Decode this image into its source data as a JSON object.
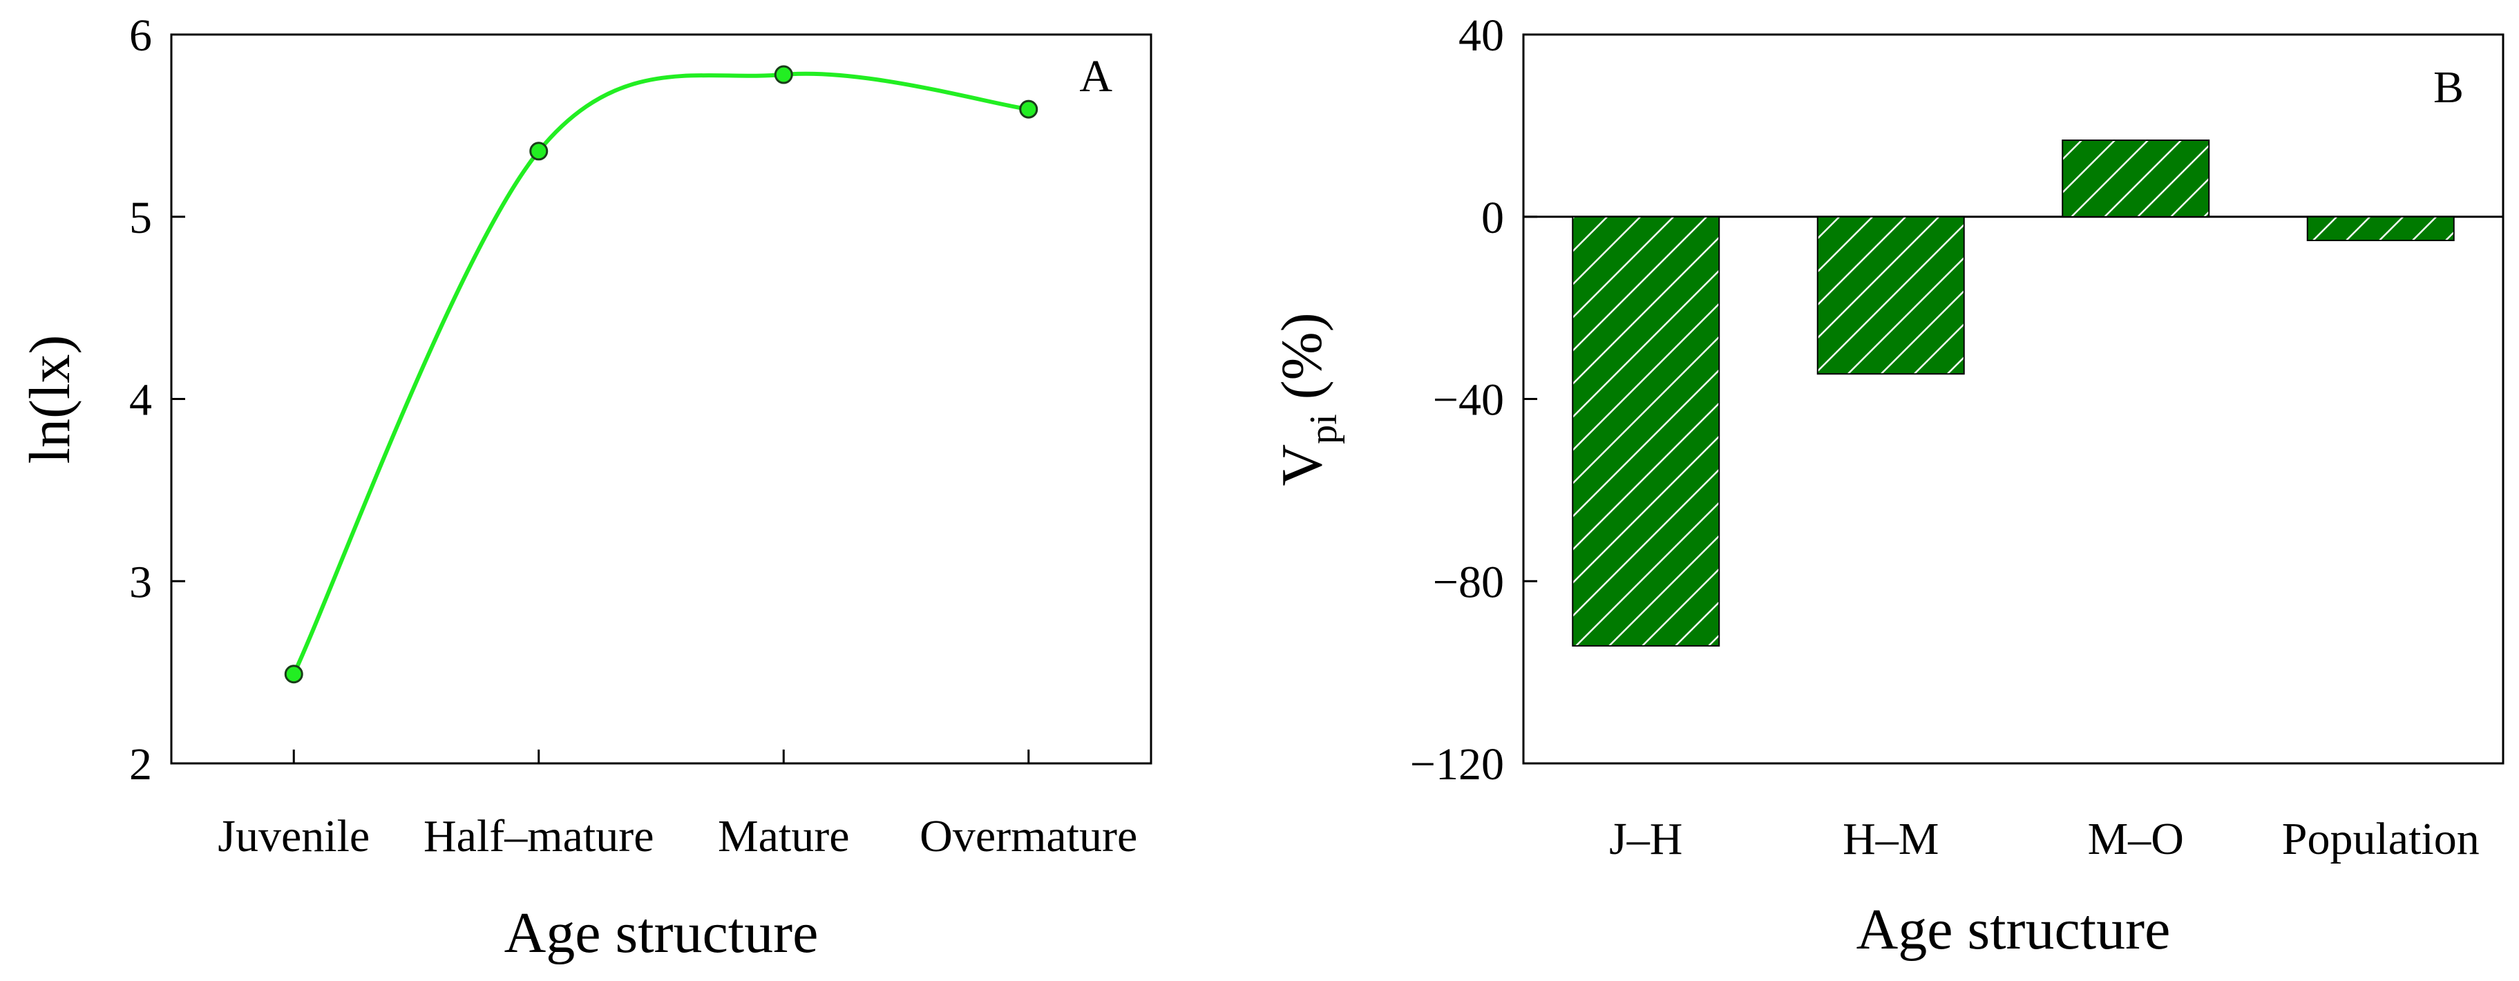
{
  "chart_data": [
    {
      "type": "line",
      "panel_label": "A",
      "categories": [
        "Juvenile",
        "Half–mature",
        "Mature",
        "Overmature"
      ],
      "series": [
        {
          "values": [
            2.49,
            5.36,
            5.78,
            5.59
          ]
        }
      ],
      "xlabel": "Age structure",
      "ylabel": "ln(lx)",
      "ylim": [
        2,
        6
      ],
      "yticks": [
        2,
        3,
        4,
        5,
        6
      ],
      "ytick_labels": [
        "2",
        "3",
        "4",
        "5",
        "6"
      ],
      "smooth": true,
      "colors": {
        "line": "#22ee22",
        "marker_fill": "#22ee22",
        "marker_stroke": "#1a3d1a"
      },
      "grid": false,
      "legend": "none"
    },
    {
      "type": "bar",
      "panel_label": "B",
      "categories": [
        "J–H",
        "H–M",
        "M–O",
        "Population"
      ],
      "values": [
        -94.2,
        -34.5,
        16.8,
        -5.2
      ],
      "xlabel": "Age structure",
      "ylabel_main": "V",
      "ylabel_sub": "pi",
      "ylabel_suffix": " (%)",
      "ylim": [
        -120,
        40
      ],
      "yticks": [
        -120,
        -80,
        -40,
        0,
        40
      ],
      "ytick_labels": [
        "−120",
        "−80",
        "−40",
        "0",
        "40"
      ],
      "zero_line": true,
      "bar_pattern": "diagonal-hatch",
      "colors": {
        "bar_fill": "#007a00",
        "hatch": "#ffffff",
        "bar_edge": "#000000"
      },
      "grid": false,
      "legend": "none"
    }
  ]
}
